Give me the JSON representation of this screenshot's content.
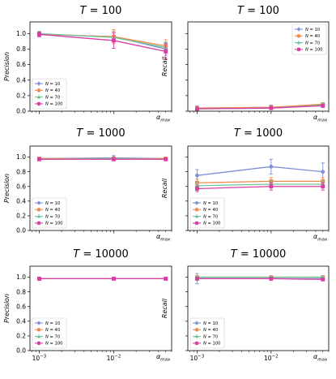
{
  "chart_data": [
    {
      "type": "line",
      "title_var": "T",
      "title_eq": " = ",
      "title_value": "100",
      "ylabel": "Precision",
      "xlabel_base": "α",
      "xlabel_sub": "max",
      "xscale": "log",
      "x": [
        0.001,
        0.01,
        0.05
      ],
      "ylim": [
        0,
        1.15
      ],
      "yticks": [
        "0.0",
        "0.2",
        "0.4",
        "0.6",
        "0.8",
        "1.0"
      ],
      "ytick_values": [
        0,
        0.2,
        0.4,
        0.6,
        0.8,
        1.0
      ],
      "xticks_shown": false,
      "legend_position": "lower-left",
      "series": [
        {
          "name_var": "N",
          "name_eq": " = ",
          "name_value": "10",
          "color": "#7f8fd6",
          "marker": "circle",
          "values": [
            0.99,
            0.96,
            0.8
          ],
          "errors": [
            0.03,
            0.07,
            0.08
          ]
        },
        {
          "name_var": "N",
          "name_eq": " = ",
          "name_value": "40",
          "color": "#f08a4b",
          "marker": "square",
          "values": [
            0.99,
            0.96,
            0.84
          ],
          "errors": [
            0.03,
            0.09,
            0.08
          ]
        },
        {
          "name_var": "N",
          "name_eq": " = ",
          "name_value": "70",
          "color": "#6cc59a",
          "marker": "triangle",
          "values": [
            1.0,
            0.95,
            0.82
          ],
          "errors": [
            0.03,
            0.06,
            0.07
          ]
        },
        {
          "name_var": "N",
          "name_eq": " = ",
          "name_value": "100",
          "color": "#d63ea3",
          "marker": "square",
          "values": [
            0.99,
            0.91,
            0.77
          ],
          "errors": [
            0.03,
            0.1,
            0.1
          ]
        }
      ]
    },
    {
      "type": "line",
      "title_var": "T",
      "title_eq": " = ",
      "title_value": "100",
      "ylabel": "Recall",
      "xlabel_base": "α",
      "xlabel_sub": "max",
      "xscale": "log",
      "x": [
        0.001,
        0.01,
        0.05
      ],
      "ylim": [
        0,
        1.15
      ],
      "yticks": [],
      "ytick_values": [
        0,
        0.2,
        0.4,
        0.6,
        0.8,
        1.0
      ],
      "xticks_shown": false,
      "legend_position": "upper-right",
      "series": [
        {
          "name_var": "N",
          "name_eq": " = ",
          "name_value": "10",
          "color": "#7f8fd6",
          "marker": "circle",
          "values": [
            0.04,
            0.05,
            0.08
          ],
          "errors": [
            0.03,
            0.03,
            0.03
          ]
        },
        {
          "name_var": "N",
          "name_eq": " = ",
          "name_value": "40",
          "color": "#f08a4b",
          "marker": "square",
          "values": [
            0.04,
            0.05,
            0.09
          ],
          "errors": [
            0.02,
            0.02,
            0.02
          ]
        },
        {
          "name_var": "N",
          "name_eq": " = ",
          "name_value": "70",
          "color": "#6cc59a",
          "marker": "triangle",
          "values": [
            0.03,
            0.04,
            0.08
          ],
          "errors": [
            0.02,
            0.02,
            0.02
          ]
        },
        {
          "name_var": "N",
          "name_eq": " = ",
          "name_value": "100",
          "color": "#d63ea3",
          "marker": "square",
          "values": [
            0.03,
            0.04,
            0.07
          ],
          "errors": [
            0.02,
            0.02,
            0.02
          ]
        }
      ]
    },
    {
      "type": "line",
      "title_var": "T",
      "title_eq": " = ",
      "title_value": "1000",
      "ylabel": "Precision",
      "xlabel_base": "α",
      "xlabel_sub": "max",
      "xscale": "log",
      "x": [
        0.001,
        0.01,
        0.05
      ],
      "ylim": [
        0,
        1.15
      ],
      "yticks": [
        "0.0",
        "0.2",
        "0.4",
        "0.6",
        "0.8",
        "1.0"
      ],
      "ytick_values": [
        0,
        0.2,
        0.4,
        0.6,
        0.8,
        1.0
      ],
      "xticks_shown": false,
      "legend_position": "lower-left",
      "series": [
        {
          "name_var": "N",
          "name_eq": " = ",
          "name_value": "10",
          "color": "#7f8fd6",
          "marker": "circle",
          "values": [
            0.98,
            0.99,
            0.98
          ],
          "errors": [
            0.02,
            0.03,
            0.02
          ]
        },
        {
          "name_var": "N",
          "name_eq": " = ",
          "name_value": "40",
          "color": "#f08a4b",
          "marker": "square",
          "values": [
            0.98,
            0.98,
            0.98
          ],
          "errors": [
            0.01,
            0.01,
            0.01
          ]
        },
        {
          "name_var": "N",
          "name_eq": " = ",
          "name_value": "70",
          "color": "#6cc59a",
          "marker": "triangle",
          "values": [
            0.97,
            0.98,
            0.97
          ],
          "errors": [
            0.01,
            0.01,
            0.01
          ]
        },
        {
          "name_var": "N",
          "name_eq": " = ",
          "name_value": "100",
          "color": "#d63ea3",
          "marker": "square",
          "values": [
            0.97,
            0.97,
            0.97
          ],
          "errors": [
            0.01,
            0.01,
            0.01
          ]
        }
      ]
    },
    {
      "type": "line",
      "title_var": "T",
      "title_eq": " = ",
      "title_value": "1000",
      "ylabel": "Recall",
      "xlabel_base": "α",
      "xlabel_sub": "max",
      "xscale": "log",
      "x": [
        0.001,
        0.01,
        0.05
      ],
      "ylim": [
        0,
        1.15
      ],
      "yticks": [],
      "ytick_values": [
        0,
        0.2,
        0.4,
        0.6,
        0.8,
        1.0
      ],
      "xticks_shown": false,
      "legend_position": "lower-left",
      "series": [
        {
          "name_var": "N",
          "name_eq": " = ",
          "name_value": "10",
          "color": "#7f8fd6",
          "marker": "circle",
          "values": [
            0.75,
            0.87,
            0.8
          ],
          "errors": [
            0.08,
            0.1,
            0.12
          ]
        },
        {
          "name_var": "N",
          "name_eq": " = ",
          "name_value": "40",
          "color": "#f08a4b",
          "marker": "square",
          "values": [
            0.65,
            0.67,
            0.67
          ],
          "errors": [
            0.05,
            0.05,
            0.05
          ]
        },
        {
          "name_var": "N",
          "name_eq": " = ",
          "name_value": "70",
          "color": "#6cc59a",
          "marker": "triangle",
          "values": [
            0.61,
            0.63,
            0.63
          ],
          "errors": [
            0.04,
            0.04,
            0.04
          ]
        },
        {
          "name_var": "N",
          "name_eq": " = ",
          "name_value": "100",
          "color": "#d63ea3",
          "marker": "square",
          "values": [
            0.57,
            0.6,
            0.6
          ],
          "errors": [
            0.04,
            0.05,
            0.05
          ]
        }
      ]
    },
    {
      "type": "line",
      "title_var": "T",
      "title_eq": " = ",
      "title_value": "10000",
      "ylabel": "Precision",
      "xlabel_base": "α",
      "xlabel_sub": "max",
      "xscale": "log",
      "x": [
        0.001,
        0.01,
        0.05
      ],
      "ylim": [
        0,
        1.15
      ],
      "yticks": [
        "0.0",
        "0.2",
        "0.4",
        "0.6",
        "0.8",
        "1.0"
      ],
      "ytick_values": [
        0,
        0.2,
        0.4,
        0.6,
        0.8,
        1.0
      ],
      "xticks_shown": true,
      "xtick_base": "10",
      "xticks_exp": [
        "−3",
        "−2"
      ],
      "xtick_values": [
        0.001,
        0.01
      ],
      "legend_position": "lower-left",
      "series": [
        {
          "name_var": "N",
          "name_eq": " = ",
          "name_value": "10",
          "color": "#7f8fd6",
          "marker": "circle",
          "values": [
            0.98,
            0.98,
            0.98
          ],
          "errors": [
            0.01,
            0.01,
            0.02
          ]
        },
        {
          "name_var": "N",
          "name_eq": " = ",
          "name_value": "40",
          "color": "#f08a4b",
          "marker": "square",
          "values": [
            0.98,
            0.98,
            0.98
          ],
          "errors": [
            0.01,
            0.01,
            0.01
          ]
        },
        {
          "name_var": "N",
          "name_eq": " = ",
          "name_value": "70",
          "color": "#6cc59a",
          "marker": "triangle",
          "values": [
            0.98,
            0.98,
            0.98
          ],
          "errors": [
            0.01,
            0.01,
            0.01
          ]
        },
        {
          "name_var": "N",
          "name_eq": " = ",
          "name_value": "100",
          "color": "#d63ea3",
          "marker": "square",
          "values": [
            0.98,
            0.98,
            0.98
          ],
          "errors": [
            0.01,
            0.01,
            0.01
          ]
        }
      ]
    },
    {
      "type": "line",
      "title_var": "T",
      "title_eq": " = ",
      "title_value": "10000",
      "ylabel": "Recall",
      "xlabel_base": "α",
      "xlabel_sub": "max",
      "xscale": "log",
      "x": [
        0.001,
        0.01,
        0.05
      ],
      "ylim": [
        0,
        1.15
      ],
      "yticks": [],
      "ytick_values": [
        0,
        0.2,
        0.4,
        0.6,
        0.8,
        1.0
      ],
      "xticks_shown": true,
      "xtick_base": "10",
      "xticks_exp": [
        "−3",
        "−2"
      ],
      "xtick_values": [
        0.001,
        0.01
      ],
      "legend_position": "lower-left",
      "series": [
        {
          "name_var": "N",
          "name_eq": " = ",
          "name_value": "10",
          "color": "#7f8fd6",
          "marker": "circle",
          "values": [
            0.98,
            0.98,
            0.98
          ],
          "errors": [
            0.07,
            0.02,
            0.02
          ]
        },
        {
          "name_var": "N",
          "name_eq": " = ",
          "name_value": "40",
          "color": "#f08a4b",
          "marker": "square",
          "values": [
            1.0,
            1.0,
            1.0
          ],
          "errors": [
            0.01,
            0.01,
            0.01
          ]
        },
        {
          "name_var": "N",
          "name_eq": " = ",
          "name_value": "70",
          "color": "#6cc59a",
          "marker": "triangle",
          "values": [
            1.0,
            1.0,
            1.0
          ],
          "errors": [
            0.01,
            0.01,
            0.01
          ]
        },
        {
          "name_var": "N",
          "name_eq": " = ",
          "name_value": "100",
          "color": "#d63ea3",
          "marker": "square",
          "values": [
            0.98,
            0.98,
            0.97
          ],
          "errors": [
            0.01,
            0.01,
            0.01
          ]
        }
      ]
    }
  ]
}
